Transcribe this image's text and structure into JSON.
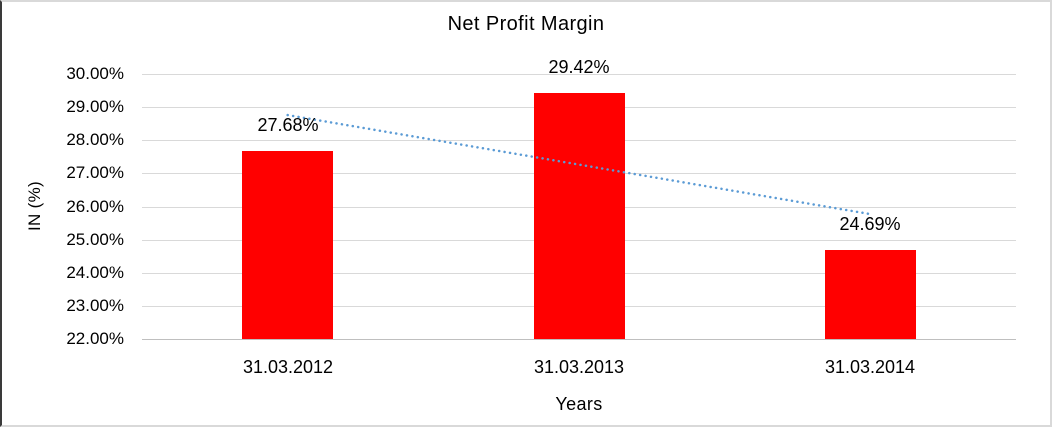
{
  "chart_data": {
    "type": "bar",
    "title": "Net Profit Margin",
    "xlabel": "Years",
    "ylabel": "IN (%)",
    "categories": [
      "31.03.2012",
      "31.03.2013",
      "31.03.2014"
    ],
    "values": [
      27.68,
      29.42,
      24.69
    ],
    "data_labels": [
      "27.68%",
      "29.42%",
      "24.69%"
    ],
    "y_tick_labels": [
      "30.00%",
      "29.00%",
      "28.00%",
      "27.00%",
      "26.00%",
      "25.00%",
      "24.00%",
      "23.00%",
      "22.00%"
    ],
    "y_tick_values": [
      30,
      29,
      28,
      27,
      26,
      25,
      24,
      23,
      22
    ],
    "ylim": [
      22,
      30
    ],
    "grid": true,
    "legend": false,
    "bar_color": "#ff0000",
    "trendline": {
      "type": "linear",
      "style": "dotted",
      "color": "#5b9bd5",
      "start_value": 28.76,
      "end_value": 25.77
    }
  }
}
